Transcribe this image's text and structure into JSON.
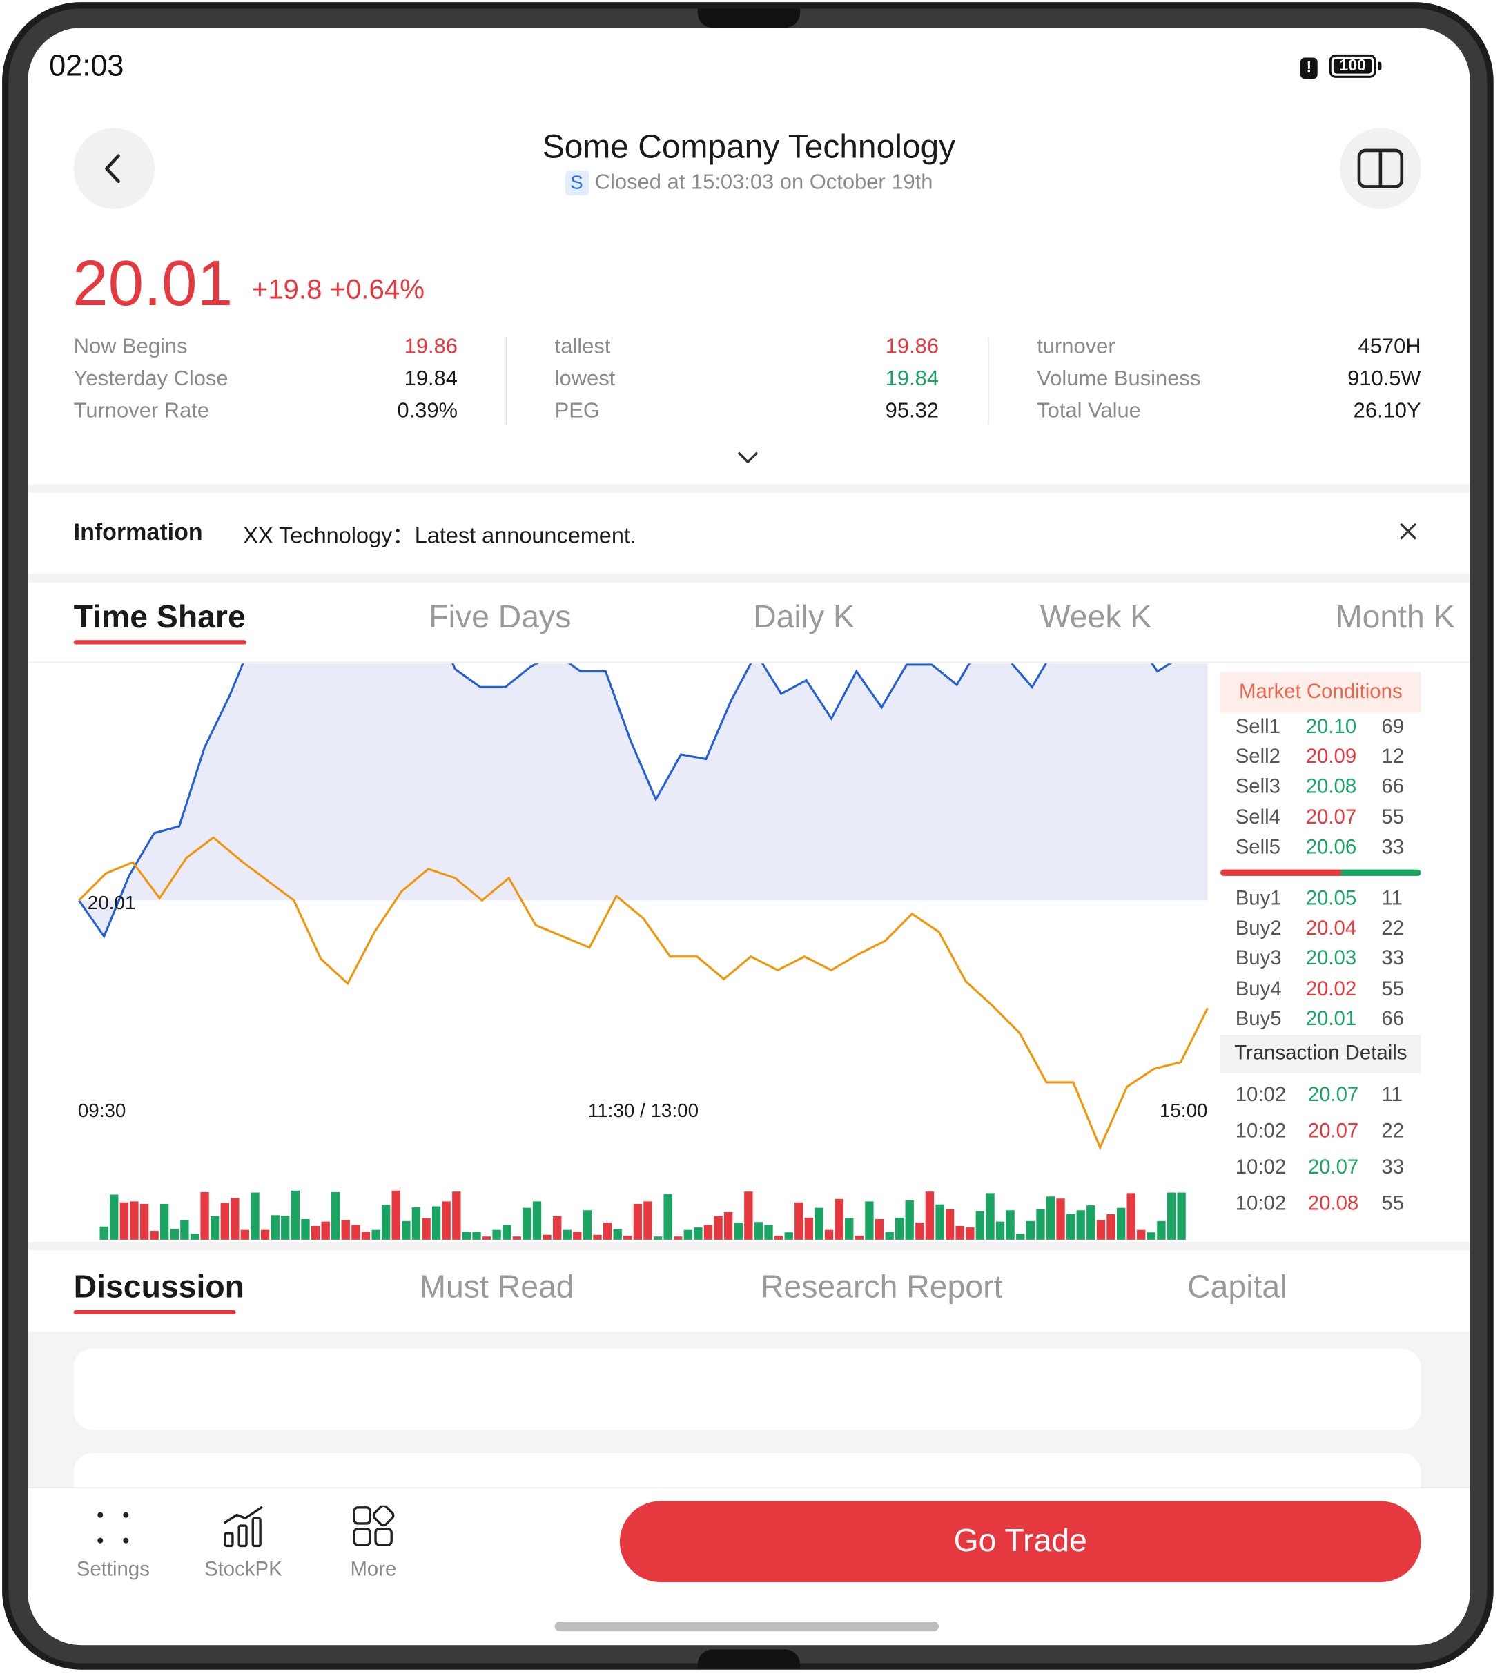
{
  "status_bar": {
    "time": "02:03",
    "battery": "100"
  },
  "header": {
    "title": "Some Company Technology",
    "market_tag": "S",
    "status": "Closed at 15:03:03 on October 19th"
  },
  "quote": {
    "price": "20.01",
    "change": "+19.8 +0.64%",
    "stats": [
      [
        {
          "label": "Now Begins",
          "value": "19.86",
          "color": "red"
        },
        {
          "label": "Yesterday Close",
          "value": "19.84",
          "color": "dark"
        },
        {
          "label": "Turnover Rate",
          "value": "0.39%",
          "color": "dark"
        }
      ],
      [
        {
          "label": "tallest",
          "value": "19.86",
          "color": "red"
        },
        {
          "label": "lowest",
          "value": "19.84",
          "color": "green"
        },
        {
          "label": "PEG",
          "value": "95.32",
          "color": "dark"
        }
      ],
      [
        {
          "label": "turnover",
          "value": "4570H",
          "color": "dark"
        },
        {
          "label": "Volume Business",
          "value": "910.5W",
          "color": "dark"
        },
        {
          "label": "Total Value",
          "value": "26.10Y",
          "color": "dark"
        }
      ]
    ]
  },
  "information": {
    "label": "Information",
    "text": "XX Technology：Latest announcement."
  },
  "chart_tabs": [
    "Time Share",
    "Five Days",
    "Daily K",
    "Week K",
    "Month K"
  ],
  "chart_data": {
    "type": "line",
    "x_labels": [
      "09:30",
      "11:30 / 13:00",
      "15:00"
    ],
    "base_label": "20.01",
    "base_value": 20.01,
    "series": [
      {
        "color": "#2360d8",
        "fill": "#e9ebf8",
        "values": [
          20.01,
          19.994,
          20.021,
          20.04,
          20.043,
          20.078,
          20.101,
          20.128,
          20.157,
          20.151,
          20.171,
          20.161,
          20.142,
          20.145,
          20.138,
          20.113,
          20.105,
          20.105,
          20.114,
          20.12,
          20.112,
          20.112,
          20.081,
          20.055,
          20.075,
          20.073,
          20.099,
          20.12,
          20.102,
          20.108,
          20.091,
          20.112,
          20.096,
          20.115,
          20.115,
          20.106,
          20.125,
          20.118,
          20.105,
          20.124,
          20.127,
          20.13,
          20.128,
          20.112,
          20.119,
          20.127
        ]
      },
      {
        "color": "#f0960a",
        "values": [
          20.01,
          20.022,
          20.027,
          20.011,
          20.029,
          20.038,
          20.028,
          20.019,
          20.01,
          19.984,
          19.973,
          19.996,
          20.014,
          20.024,
          20.02,
          20.01,
          20.02,
          19.999,
          19.994,
          19.989,
          20.012,
          20.002,
          19.985,
          19.985,
          19.975,
          19.985,
          19.979,
          19.985,
          19.979,
          19.986,
          19.992,
          20.004,
          19.996,
          19.974,
          19.963,
          19.951,
          19.929,
          19.929,
          19.9,
          19.927,
          19.935,
          19.938,
          19.962
        ]
      }
    ],
    "volume": [
      {
        "v": 0.27,
        "c": "g"
      },
      {
        "v": 0.92,
        "c": "g"
      },
      {
        "v": 0.76,
        "c": "r"
      },
      {
        "v": 0.78,
        "c": "r"
      },
      {
        "v": 0.73,
        "c": "r"
      },
      {
        "v": 0.18,
        "c": "r"
      },
      {
        "v": 0.73,
        "c": "g"
      },
      {
        "v": 0.22,
        "c": "g"
      },
      {
        "v": 0.4,
        "c": "g"
      },
      {
        "v": 0.12,
        "c": "g"
      },
      {
        "v": 0.97,
        "c": "r"
      },
      {
        "v": 0.48,
        "c": "g"
      },
      {
        "v": 0.75,
        "c": "r"
      },
      {
        "v": 0.85,
        "c": "r"
      },
      {
        "v": 0.2,
        "c": "r"
      },
      {
        "v": 0.96,
        "c": "g"
      },
      {
        "v": 0.2,
        "c": "r"
      },
      {
        "v": 0.5,
        "c": "g"
      },
      {
        "v": 0.49,
        "c": "g"
      },
      {
        "v": 1.0,
        "c": "g"
      },
      {
        "v": 0.42,
        "c": "g"
      },
      {
        "v": 0.28,
        "c": "r"
      },
      {
        "v": 0.37,
        "c": "r"
      },
      {
        "v": 0.97,
        "c": "g"
      },
      {
        "v": 0.4,
        "c": "r"
      },
      {
        "v": 0.3,
        "c": "r"
      },
      {
        "v": 0.16,
        "c": "r"
      },
      {
        "v": 0.2,
        "c": "g"
      },
      {
        "v": 0.71,
        "c": "g"
      },
      {
        "v": 1.0,
        "c": "r"
      },
      {
        "v": 0.38,
        "c": "g"
      },
      {
        "v": 0.66,
        "c": "g"
      },
      {
        "v": 0.44,
        "c": "r"
      },
      {
        "v": 0.68,
        "c": "g"
      },
      {
        "v": 0.78,
        "c": "r"
      },
      {
        "v": 0.98,
        "c": "r"
      },
      {
        "v": 0.16,
        "c": "g"
      },
      {
        "v": 0.16,
        "c": "g"
      },
      {
        "v": 0.06,
        "c": "r"
      },
      {
        "v": 0.2,
        "c": "g"
      },
      {
        "v": 0.3,
        "c": "g"
      },
      {
        "v": 0.06,
        "c": "r"
      },
      {
        "v": 0.65,
        "c": "g"
      },
      {
        "v": 0.78,
        "c": "g"
      },
      {
        "v": 0.1,
        "c": "r"
      },
      {
        "v": 0.48,
        "c": "r"
      },
      {
        "v": 0.2,
        "c": "g"
      },
      {
        "v": 0.16,
        "c": "r"
      },
      {
        "v": 0.6,
        "c": "g"
      },
      {
        "v": 0.1,
        "c": "r"
      },
      {
        "v": 0.35,
        "c": "r"
      },
      {
        "v": 0.22,
        "c": "g"
      },
      {
        "v": 0.08,
        "c": "r"
      },
      {
        "v": 0.73,
        "c": "r"
      },
      {
        "v": 0.78,
        "c": "r"
      },
      {
        "v": 0.05,
        "c": "g"
      },
      {
        "v": 0.93,
        "c": "g"
      },
      {
        "v": 0.06,
        "c": "r"
      },
      {
        "v": 0.2,
        "c": "g"
      },
      {
        "v": 0.25,
        "c": "g"
      },
      {
        "v": 0.3,
        "c": "r"
      },
      {
        "v": 0.48,
        "c": "r"
      },
      {
        "v": 0.56,
        "c": "r"
      },
      {
        "v": 0.35,
        "c": "g"
      },
      {
        "v": 0.98,
        "c": "r"
      },
      {
        "v": 0.36,
        "c": "g"
      },
      {
        "v": 0.3,
        "c": "g"
      },
      {
        "v": 0.08,
        "c": "r"
      },
      {
        "v": 0.15,
        "c": "g"
      },
      {
        "v": 0.76,
        "c": "r"
      },
      {
        "v": 0.45,
        "c": "r"
      },
      {
        "v": 0.65,
        "c": "g"
      },
      {
        "v": 0.2,
        "c": "r"
      },
      {
        "v": 0.83,
        "c": "r"
      },
      {
        "v": 0.44,
        "c": "g"
      },
      {
        "v": 0.08,
        "c": "r"
      },
      {
        "v": 0.78,
        "c": "g"
      },
      {
        "v": 0.42,
        "c": "r"
      },
      {
        "v": 0.16,
        "c": "g"
      },
      {
        "v": 0.45,
        "c": "g"
      },
      {
        "v": 0.8,
        "c": "g"
      },
      {
        "v": 0.35,
        "c": "r"
      },
      {
        "v": 0.98,
        "c": "r"
      },
      {
        "v": 0.72,
        "c": "g"
      },
      {
        "v": 0.62,
        "c": "r"
      },
      {
        "v": 0.28,
        "c": "r"
      },
      {
        "v": 0.25,
        "c": "r"
      },
      {
        "v": 0.58,
        "c": "g"
      },
      {
        "v": 0.95,
        "c": "g"
      },
      {
        "v": 0.37,
        "c": "g"
      },
      {
        "v": 0.6,
        "c": "g"
      },
      {
        "v": 0.12,
        "c": "g"
      },
      {
        "v": 0.38,
        "c": "g"
      },
      {
        "v": 0.62,
        "c": "g"
      },
      {
        "v": 0.88,
        "c": "g"
      },
      {
        "v": 0.84,
        "c": "r"
      },
      {
        "v": 0.52,
        "c": "g"
      },
      {
        "v": 0.6,
        "c": "g"
      },
      {
        "v": 0.7,
        "c": "g"
      },
      {
        "v": 0.4,
        "c": "r"
      },
      {
        "v": 0.52,
        "c": "r"
      },
      {
        "v": 0.65,
        "c": "g"
      },
      {
        "v": 0.95,
        "c": "r"
      },
      {
        "v": 0.2,
        "c": "r"
      },
      {
        "v": 0.15,
        "c": "g"
      },
      {
        "v": 0.38,
        "c": "g"
      },
      {
        "v": 0.96,
        "c": "g"
      },
      {
        "v": 0.96,
        "c": "g"
      }
    ]
  },
  "order_book": {
    "title": "Market Conditions",
    "sells": [
      {
        "label": "Sell1",
        "price": "20.10",
        "color": "green",
        "qty": "69"
      },
      {
        "label": "Sell2",
        "price": "20.09",
        "color": "red",
        "qty": "12"
      },
      {
        "label": "Sell3",
        "price": "20.08",
        "color": "green",
        "qty": "66"
      },
      {
        "label": "Sell4",
        "price": "20.07",
        "color": "red",
        "qty": "55"
      },
      {
        "label": "Sell5",
        "price": "20.06",
        "color": "green",
        "qty": "33"
      }
    ],
    "buys": [
      {
        "label": "Buy1",
        "price": "20.05",
        "color": "green",
        "qty": "11"
      },
      {
        "label": "Buy2",
        "price": "20.04",
        "color": "red",
        "qty": "22"
      },
      {
        "label": "Buy3",
        "price": "20.03",
        "color": "green",
        "qty": "33"
      },
      {
        "label": "Buy4",
        "price": "20.02",
        "color": "red",
        "qty": "55"
      },
      {
        "label": "Buy5",
        "price": "20.01",
        "color": "green",
        "qty": "66"
      }
    ],
    "transactions_title": "Transaction Details",
    "transactions": [
      {
        "time": "10:02",
        "price": "20.07",
        "color": "green",
        "qty": "11"
      },
      {
        "time": "10:02",
        "price": "20.07",
        "color": "red",
        "qty": "22"
      },
      {
        "time": "10:02",
        "price": "20.07",
        "color": "green",
        "qty": "33"
      },
      {
        "time": "10:02",
        "price": "20.08",
        "color": "red",
        "qty": "55"
      }
    ]
  },
  "content_tabs": [
    "Discussion",
    "Must Read",
    "Research Report",
    "Capital"
  ],
  "bottom_bar": {
    "settings": "Settings",
    "stockpk": "StockPK",
    "more": "More",
    "trade": "Go Trade"
  },
  "colors": {
    "accent": "#e5393f",
    "red": "#e5393f",
    "green": "#1aa563",
    "blue_line": "#2360d8",
    "orange_line": "#f0960a"
  }
}
